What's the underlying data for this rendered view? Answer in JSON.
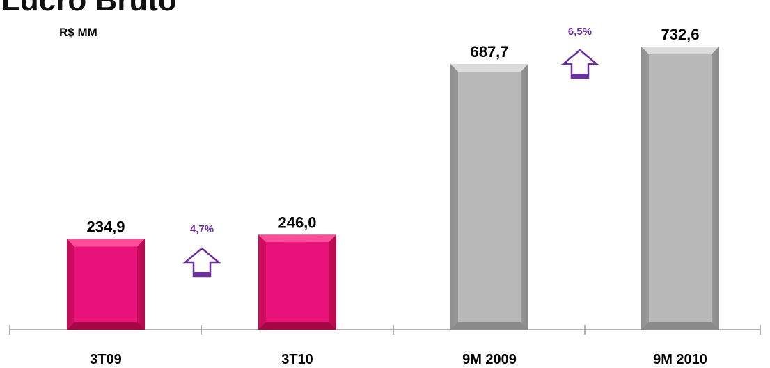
{
  "title": "Lucro Bruto",
  "subtitle": "R$ MM",
  "colors": {
    "quarter_bar": "#e0106a",
    "ninemonth_bar": "#b4b4b4",
    "growth": "#6b2fa0",
    "axis": "#999999"
  },
  "chart_data": {
    "type": "bar",
    "title": "Lucro Bruto",
    "unit": "R$ MM",
    "categories": [
      "3T09",
      "3T10",
      "9M 2009",
      "9M 2010"
    ],
    "values": [
      234.9,
      246.0,
      687.7,
      732.6
    ],
    "value_labels": [
      "234,9",
      "246,0",
      "687,7",
      "732,6"
    ],
    "growth": [
      {
        "label": "4,7%",
        "direction": "up",
        "from": "3T09",
        "to": "3T10"
      },
      {
        "label": "6,5%",
        "direction": "up",
        "from": "9M 2009",
        "to": "9M 2010"
      }
    ],
    "grid": false,
    "legend": "none"
  }
}
